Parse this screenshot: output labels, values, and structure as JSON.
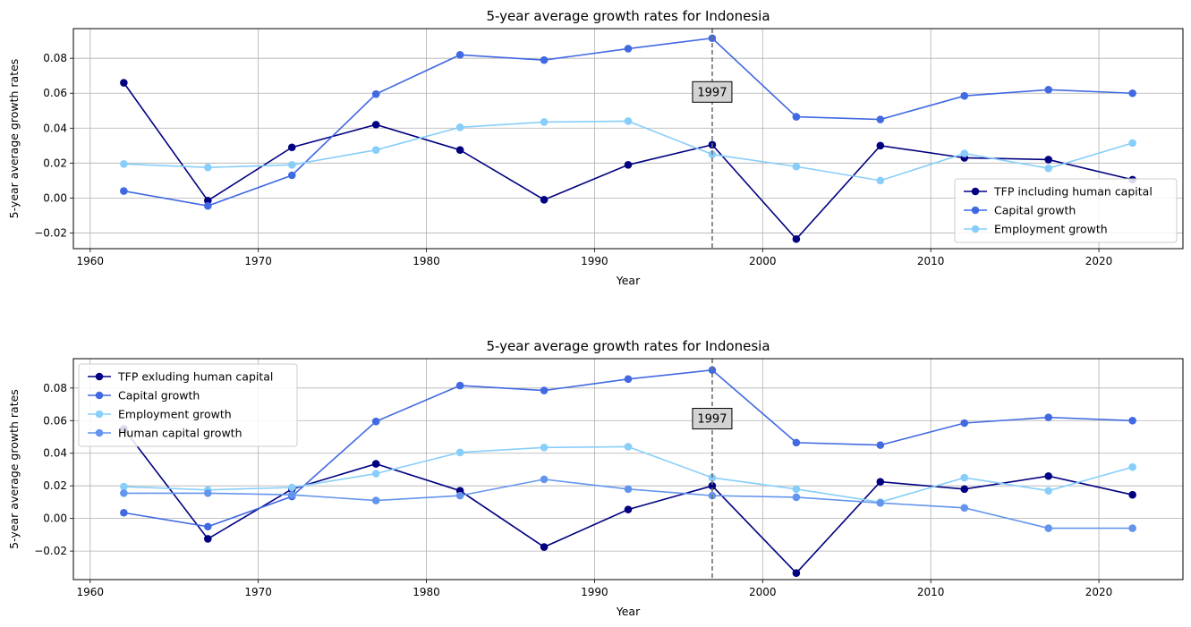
{
  "chart_data": [
    {
      "type": "line",
      "title": "5-year average growth rates for Indonesia",
      "xlabel": "Year",
      "ylabel": "5-year average growth rates",
      "xlim": [
        1959.0,
        2025.0
      ],
      "ylim": [
        -0.029,
        0.097
      ],
      "xticks": [
        1960,
        1970,
        1980,
        1990,
        2000,
        2010,
        2020
      ],
      "yticks": [
        -0.02,
        0.0,
        0.02,
        0.04,
        0.06,
        0.08
      ],
      "grid": true,
      "legend_position": "lower right",
      "vline": {
        "x": 1997,
        "label": "1997",
        "label_y": 0.061
      },
      "x": [
        1962,
        1967,
        1972,
        1977,
        1982,
        1987,
        1992,
        1997,
        2002,
        2007,
        2012,
        2017,
        2022
      ],
      "series": [
        {
          "name": "TFP including human capital",
          "color": "#000080",
          "values": [
            0.066,
            -0.0015,
            0.029,
            0.042,
            0.0275,
            -0.001,
            0.019,
            0.0305,
            -0.0235,
            0.03,
            0.023,
            0.022,
            0.0105
          ]
        },
        {
          "name": "Capital growth",
          "color": "#4169e1",
          "values": [
            0.004,
            -0.0045,
            0.013,
            0.0595,
            0.082,
            0.079,
            0.0855,
            0.0915,
            0.0465,
            0.045,
            0.0585,
            0.062,
            0.06
          ]
        },
        {
          "name": "Employment growth",
          "color": "#87cefa",
          "values": [
            0.0195,
            0.0175,
            0.019,
            0.0275,
            0.0405,
            0.0435,
            0.044,
            0.025,
            0.018,
            0.01,
            0.0255,
            0.017,
            0.0315
          ]
        }
      ]
    },
    {
      "type": "line",
      "title": "5-year average growth rates for Indonesia",
      "xlabel": "Year",
      "ylabel": "5-year average growth rates",
      "xlim": [
        1959.0,
        2025.0
      ],
      "ylim": [
        -0.0375,
        0.098
      ],
      "xticks": [
        1960,
        1970,
        1980,
        1990,
        2000,
        2010,
        2020
      ],
      "yticks": [
        -0.02,
        0.0,
        0.02,
        0.04,
        0.06,
        0.08
      ],
      "grid": true,
      "legend_position": "upper left",
      "vline": {
        "x": 1997,
        "label": "1997",
        "label_y": 0.0615
      },
      "x": [
        1962,
        1967,
        1972,
        1977,
        1982,
        1987,
        1992,
        1997,
        2002,
        2007,
        2012,
        2017,
        2022
      ],
      "series": [
        {
          "name": "TFP exluding human capital",
          "color": "#000080",
          "values": [
            0.055,
            -0.0125,
            0.018,
            0.0335,
            0.017,
            -0.0175,
            0.0055,
            0.02,
            -0.0335,
            0.0225,
            0.018,
            0.026,
            0.0145
          ]
        },
        {
          "name": "Capital growth",
          "color": "#4169e1",
          "values": [
            0.0035,
            -0.005,
            0.0135,
            0.0595,
            0.0815,
            0.0785,
            0.0855,
            0.091,
            0.0465,
            0.045,
            0.0585,
            0.062,
            0.06
          ]
        },
        {
          "name": "Employment growth",
          "color": "#87cefa",
          "values": [
            0.0195,
            0.0175,
            0.019,
            0.0275,
            0.0405,
            0.0435,
            0.044,
            0.025,
            0.018,
            0.01,
            0.025,
            0.017,
            0.0315
          ]
        },
        {
          "name": "Human capital growth",
          "color": "#6495ed",
          "values": [
            0.0155,
            0.0155,
            0.0145,
            0.011,
            0.014,
            0.024,
            0.018,
            0.014,
            0.013,
            0.0095,
            0.0065,
            -0.006,
            -0.006
          ]
        }
      ]
    }
  ]
}
